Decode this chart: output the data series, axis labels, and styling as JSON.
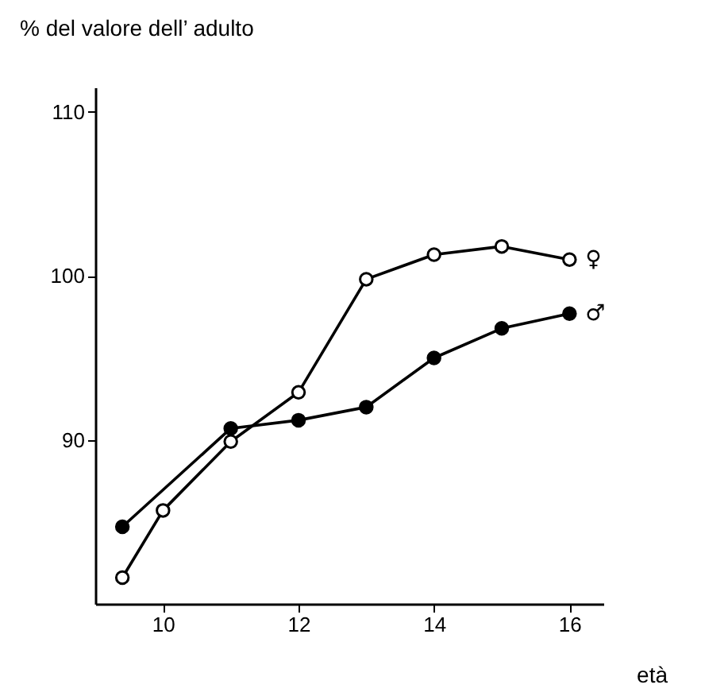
{
  "chart_data": {
    "type": "line",
    "ylabel": "% del valore dell’ adulto",
    "xlabel": "età",
    "xlim": [
      9,
      16.5
    ],
    "xticks": [
      10,
      12,
      14,
      16
    ],
    "ylim": [
      80,
      111.5
    ],
    "yticks": [
      90,
      100,
      110
    ],
    "grid": false,
    "legend": false,
    "marker": "circle",
    "line_style": "solid",
    "series": [
      {
        "name": "♀",
        "color": "#000000",
        "x": [
          9.4,
          10,
          11,
          12,
          13,
          14,
          15,
          16
        ],
        "values": [
          81.6,
          85.7,
          89.9,
          92.9,
          99.8,
          101.3,
          101.8,
          101.0
        ]
      },
      {
        "name": "♂",
        "color": "#000000",
        "x": [
          9.4,
          11,
          12,
          13,
          14,
          15,
          16
        ],
        "values": [
          84.7,
          90.7,
          91.2,
          92.0,
          95.0,
          96.8,
          97.7
        ]
      }
    ]
  }
}
